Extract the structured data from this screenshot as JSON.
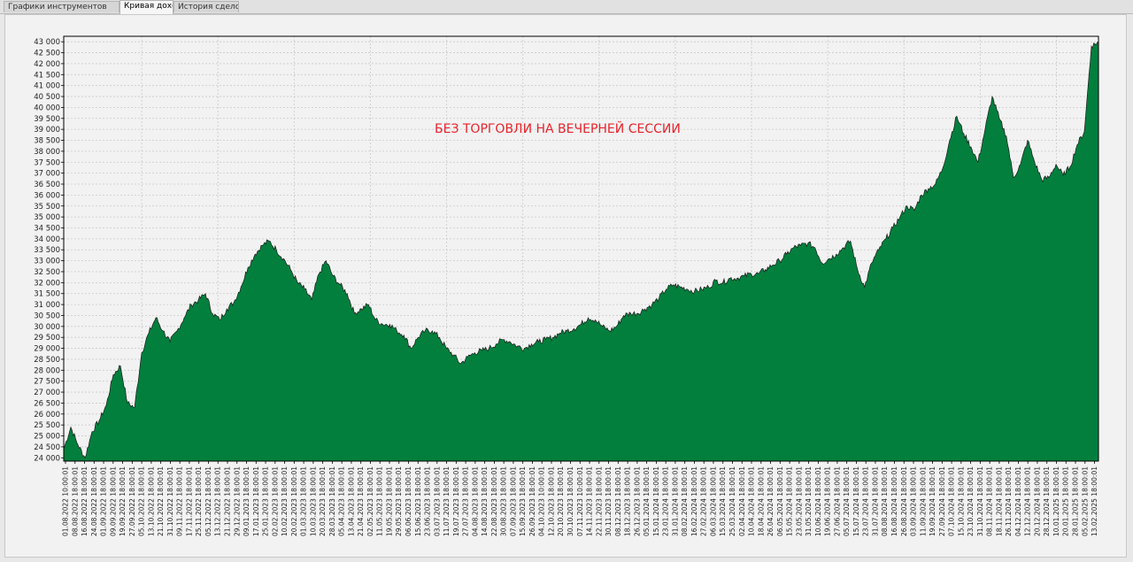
{
  "tabs": [
    {
      "label": "Графики инструментов",
      "active": false
    },
    {
      "label": "Кривая доходности",
      "active": true
    },
    {
      "label": "История сделок",
      "active": false
    }
  ],
  "chart_data": {
    "type": "area",
    "title": "",
    "annotation": "БЕЗ ТОРГОВЛИ НА ВЕЧЕРНЕЙ СЕССИИ",
    "xlabel": "",
    "ylabel": "",
    "ylim": [
      23850,
      43250
    ],
    "grid": true,
    "fill_color": "#027f3d",
    "line_color": "#1a1a1a",
    "yticks": [
      "24 000",
      "24 500",
      "25 000",
      "25 500",
      "26 000",
      "26 500",
      "27 000",
      "27 500",
      "28 000",
      "28 500",
      "29 000",
      "29 500",
      "30 000",
      "30 500",
      "31 000",
      "31 500",
      "32 000",
      "32 500",
      "33 000",
      "33 500",
      "34 000",
      "34 500",
      "35 000",
      "35 500",
      "36 000",
      "36 500",
      "37 000",
      "37 500",
      "38 000",
      "38 500",
      "39 000",
      "39 500",
      "40 000",
      "40 500",
      "41 000",
      "41 500",
      "42 000",
      "42 500",
      "43 000"
    ],
    "xticks": [
      "01.08.2022 10:00:01",
      "08.08.2022 18:00:01",
      "16.08.2022 18:00:01",
      "24.08.2022 18:00:01",
      "01.09.2022 18:00:01",
      "09.09.2022 18:00:01",
      "19.09.2022 18:00:01",
      "27.09.2022 18:00:01",
      "05.10.2022 18:00:01",
      "13.10.2022 18:00:01",
      "21.10.2022 18:00:01",
      "31.10.2022 18:00:01",
      "09.11.2022 18:00:01",
      "17.11.2022 18:00:01",
      "25.11.2022 18:00:01",
      "05.12.2022 18:00:01",
      "13.12.2022 18:00:01",
      "21.12.2022 18:00:01",
      "29.12.2022 18:00:01",
      "09.01.2023 18:00:01",
      "17.01.2023 18:00:01",
      "25.01.2023 18:00:01",
      "02.02.2023 18:00:01",
      "10.02.2023 18:00:01",
      "20.02.2023 18:00:01",
      "01.03.2023 18:00:01",
      "10.03.2023 18:00:01",
      "20.03.2023 18:00:01",
      "28.03.2023 18:00:01",
      "05.04.2023 18:00:01",
      "13.04.2023 18:00:01",
      "21.04.2023 18:00:01",
      "02.05.2023 18:00:01",
      "11.05.2023 18:00:01",
      "19.05.2023 18:00:01",
      "29.05.2023 18:00:01",
      "06.06.2023 18:00:01",
      "15.06.2023 18:00:01",
      "23.06.2023 18:00:01",
      "03.07.2023 18:00:01",
      "11.07.2023 18:00:01",
      "19.07.2023 18:00:01",
      "27.07.2023 18:00:01",
      "04.08.2023 18:00:01",
      "14.08.2023 18:00:01",
      "22.08.2023 18:00:01",
      "30.08.2023 18:00:01",
      "07.09.2023 18:00:01",
      "15.09.2023 18:00:01",
      "26.09.2023 18:00:01",
      "04.10.2023 10:00:01",
      "12.10.2023 18:00:01",
      "20.10.2023 18:00:01",
      "30.10.2023 18:00:01",
      "07.11.2023 10:00:01",
      "14.11.2023 18:00:01",
      "22.11.2023 18:00:01",
      "30.11.2023 18:00:01",
      "08.12.2023 18:00:01",
      "18.12.2023 18:00:01",
      "26.12.2023 18:00:01",
      "05.01.2024 18:00:01",
      "15.01.2024 18:00:01",
      "23.01.2024 18:00:01",
      "31.01.2024 18:00:01",
      "08.02.2024 18:00:01",
      "16.02.2024 18:00:01",
      "27.02.2024 18:00:01",
      "06.03.2024 18:00:01",
      "15.03.2024 18:00:01",
      "25.03.2024 18:00:01",
      "02.04.2024 18:00:01",
      "10.04.2024 18:00:01",
      "18.04.2024 18:00:01",
      "26.04.2024 18:00:01",
      "06.05.2024 18:00:01",
      "15.05.2024 18:00:01",
      "23.05.2024 18:00:01",
      "31.05.2024 18:00:01",
      "10.06.2024 18:00:01",
      "19.06.2024 18:00:01",
      "27.06.2024 18:00:01",
      "05.07.2024 18:00:01",
      "15.07.2024 18:00:01",
      "23.07.2024 18:00:01",
      "31.07.2024 18:00:01",
      "08.08.2024 18:00:01",
      "16.08.2024 18:00:01",
      "26.08.2024 18:00:01",
      "03.09.2024 18:00:01",
      "11.09.2024 18:00:01",
      "19.09.2024 18:00:01",
      "27.09.2024 18:00:01",
      "07.10.2024 18:00:01",
      "15.10.2024 18:00:01",
      "23.10.2024 18:00:01",
      "31.10.2024 18:00:01",
      "08.11.2024 18:00:01",
      "18.11.2024 18:00:01",
      "26.11.2024 18:00:01",
      "04.12.2024 18:00:01",
      "12.12.2024 18:00:01",
      "20.12.2024 18:00:01",
      "28.12.2024 18:00:01",
      "10.01.2025 18:00:01",
      "20.01.2025 18:00:01",
      "28.01.2025 18:00:01",
      "05.02.2025 18:00:01",
      "13.02.2025 18:00:01"
    ],
    "series": [
      {
        "values": [
          24400,
          25400,
          24600,
          24000,
          25200,
          25700,
          26400,
          27800,
          28200,
          26500,
          26300,
          28800,
          29700,
          30400,
          29800,
          29300,
          29800,
          30400,
          31000,
          31200,
          31500,
          30600,
          30300,
          30800,
          31100,
          31800,
          32700,
          33300,
          33700,
          33900,
          33500,
          33100,
          32600,
          32000,
          31700,
          31200,
          32400,
          33000,
          32300,
          31900,
          31500,
          30600,
          30800,
          31000,
          30300,
          30100,
          30100,
          29800,
          29600,
          29000,
          29500,
          29800,
          29800,
          29500,
          29000,
          28700,
          28300,
          28600,
          28800,
          28900,
          29000,
          29200,
          29400,
          29300,
          29100,
          29000,
          29200,
          29300,
          29400,
          29500,
          29700,
          29800,
          29900,
          30100,
          30400,
          30300,
          30000,
          29800,
          30000,
          30500,
          30600,
          30600,
          30800,
          31000,
          31300,
          31700,
          31900,
          31800,
          31700,
          31600,
          31700,
          31800,
          32100,
          32000,
          32200,
          32200,
          32300,
          32400,
          32400,
          32600,
          32800,
          33000,
          33300,
          33600,
          33700,
          33800,
          33600,
          32900,
          33100,
          33300,
          33600,
          33900,
          32600,
          31800,
          32900,
          33500,
          34000,
          34500,
          35000,
          35500,
          35300,
          36000,
          36300,
          36500,
          37200,
          38500,
          39600,
          38800,
          38200,
          37500,
          39000,
          40500,
          39500,
          38700,
          36800,
          37400,
          38500,
          37500,
          36700,
          36800,
          37400,
          36900,
          37300,
          38300,
          38900,
          42800,
          43000
        ]
      }
    ]
  }
}
